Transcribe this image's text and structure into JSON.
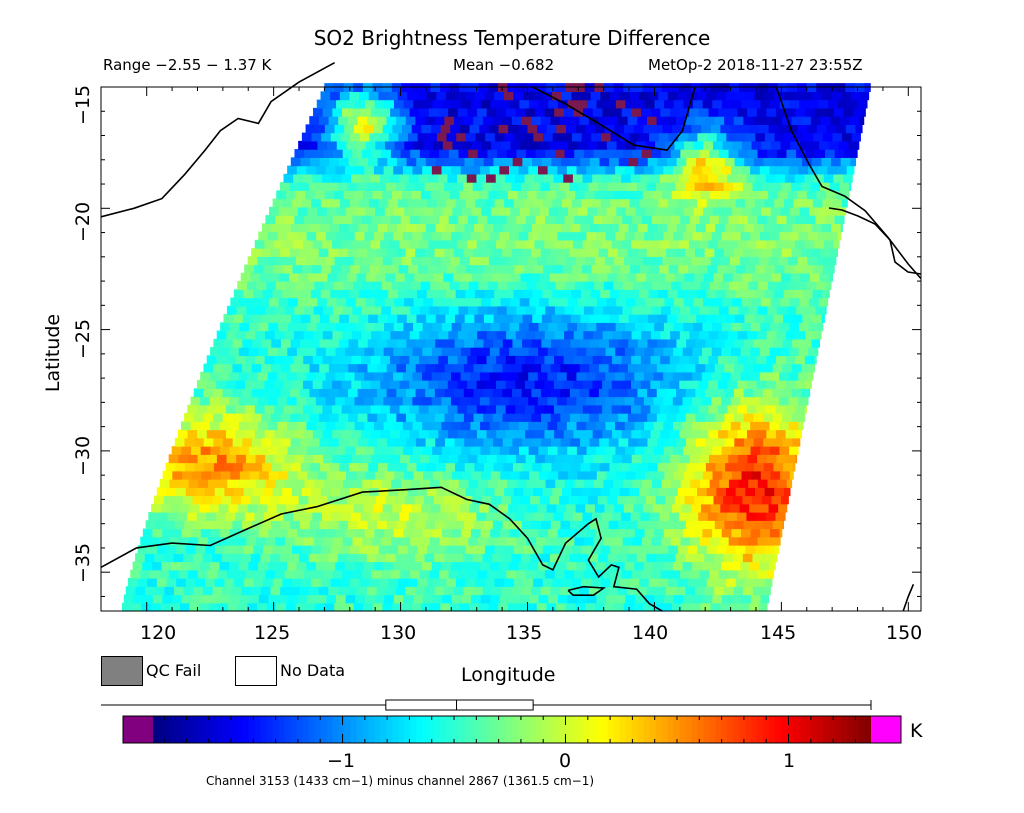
{
  "title": "SO2 Brightness Temperature Difference",
  "subtitle": {
    "range": "Range −2.55 − 1.37 K",
    "mean": "Mean −0.682",
    "satellite": "MetOp-2 2018-11-27 23:55Z"
  },
  "axes": {
    "xlabel": "Longitude",
    "ylabel": "Latitude",
    "xticks": [
      "120",
      "125",
      "130",
      "135",
      "140",
      "145",
      "150"
    ],
    "yticks": [
      "−15",
      "−20",
      "−25",
      "−30",
      "−35"
    ],
    "xlim": [
      118.2,
      150.5
    ],
    "ylim": [
      -36.6,
      -15
    ]
  },
  "legend": {
    "qc_fail": "QC Fail",
    "no_data": "No Data",
    "qc_fail_color": "#808080",
    "no_data_color": "#ffffff"
  },
  "colorbar": {
    "unit": "K",
    "ticks": [
      "−1",
      "0",
      "1"
    ],
    "tick_values": [
      -1,
      0,
      1
    ],
    "range": [
      -1.85,
      1.37
    ],
    "under_color": "#800080",
    "over_color": "#ff00ff",
    "colormap": "jet"
  },
  "boxplot": {
    "min": -2.55,
    "q1": -1.1,
    "median": -0.74,
    "q3": -0.35,
    "max": 1.37
  },
  "footnote": "Channel 3153 (1433 cm−1) minus channel 2867 (1361.5 cm−1)",
  "chart_data": {
    "type": "heatmap",
    "title": "SO2 Brightness Temperature Difference",
    "xlabel": "Longitude",
    "ylabel": "Latitude",
    "xlim": [
      118.2,
      150.5
    ],
    "ylim": [
      -36.6,
      -15
    ],
    "unit": "K",
    "value_range": [
      -2.55,
      1.37
    ],
    "mean": -0.682,
    "features": [
      {
        "region": "SE (140-146E, 29-36S)",
        "value": 1.0
      },
      {
        "region": "SW (119-126E, 29-33S)",
        "value": 0.6
      },
      {
        "region": "Central (128-141E, 24-30S)",
        "value": -1.4
      },
      {
        "region": "North (125-148E, 15-19S)",
        "value": -1.5
      },
      {
        "region": "NE patch (141-143E, 17-20S)",
        "value": 0.1
      },
      {
        "region": "NW patch (127-130E, 15-18S)",
        "value": 0.4
      }
    ]
  }
}
